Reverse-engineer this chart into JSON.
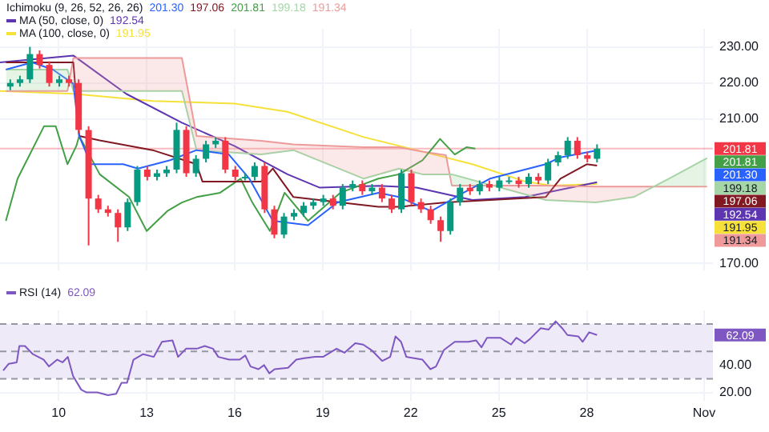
{
  "chart_data": [
    {
      "type": "candlestick",
      "legend": "top left",
      "grid": true,
      "tick_labels": "y",
      "annotations": [
        "Ichimoku (9, 26, 52, 26, 26)",
        "201.30",
        "197.06",
        "201.81",
        "199.18",
        "191.34",
        "192.54",
        "191.95"
      ],
      "x": [
        8.35,
        8.68,
        9.02,
        9.35,
        9.68,
        10.02,
        10.35,
        10.68,
        11.02,
        11.35,
        11.68,
        12.02,
        12.35,
        12.68,
        13.02,
        13.35,
        13.68,
        14.02,
        14.35,
        14.68,
        15.02,
        15.35,
        15.68,
        16.02,
        16.35,
        16.68,
        17.02,
        17.35,
        17.68,
        18.02,
        18.35,
        18.68,
        19.02,
        19.35,
        19.68,
        20.02,
        20.35,
        20.68,
        21.02,
        21.35,
        21.68,
        22.02,
        22.35,
        22.68,
        23.02,
        23.35,
        23.68,
        24.02,
        24.35,
        24.68,
        25.02,
        25.35,
        25.68,
        26.02,
        26.35,
        26.68,
        27.02,
        27.35,
        27.68,
        28.02,
        28.35
      ],
      "ohlc": [
        [
          219,
          221,
          218,
          220
        ],
        [
          220,
          222,
          219,
          221
        ],
        [
          221,
          230,
          220,
          228
        ],
        [
          228,
          229,
          224,
          225
        ],
        [
          225,
          226,
          219,
          220
        ],
        [
          220,
          222,
          219,
          221
        ],
        [
          221,
          222,
          219,
          220
        ],
        [
          220,
          221,
          206,
          207
        ],
        [
          207,
          208,
          175,
          188
        ],
        [
          188,
          189,
          184,
          185
        ],
        [
          185,
          186,
          183,
          184
        ],
        [
          184,
          185,
          176,
          180
        ],
        [
          180,
          188,
          179,
          187
        ],
        [
          187,
          197,
          186,
          196
        ],
        [
          196,
          197,
          193,
          194
        ],
        [
          194,
          196,
          193,
          195
        ],
        [
          195,
          197,
          194,
          196
        ],
        [
          196,
          209,
          195,
          207
        ],
        [
          207,
          208,
          194,
          195
        ],
        [
          195,
          200,
          194,
          199
        ],
        [
          199,
          204,
          198,
          203
        ],
        [
          203,
          205,
          202,
          204
        ],
        [
          204,
          205,
          195,
          196
        ],
        [
          196,
          197,
          193,
          194
        ],
        [
          194,
          195,
          193,
          194
        ],
        [
          194,
          198,
          193,
          197
        ],
        [
          197,
          198,
          184,
          185
        ],
        [
          185,
          186,
          177,
          178
        ],
        [
          178,
          184,
          177,
          183
        ],
        [
          183,
          185,
          182,
          184
        ],
        [
          184,
          187,
          183,
          186
        ],
        [
          186,
          188,
          185,
          187
        ],
        [
          187,
          189,
          186,
          188
        ],
        [
          188,
          189,
          185,
          186
        ],
        [
          186,
          192,
          185,
          191
        ],
        [
          191,
          193,
          190,
          192
        ],
        [
          192,
          193,
          189,
          190
        ],
        [
          190,
          192,
          189,
          191
        ],
        [
          191,
          192,
          187,
          188
        ],
        [
          188,
          189,
          184,
          185
        ],
        [
          185,
          196,
          184,
          195
        ],
        [
          195,
          196,
          186,
          187
        ],
        [
          187,
          188,
          184,
          185
        ],
        [
          185,
          186,
          181,
          182
        ],
        [
          182,
          183,
          176,
          179
        ],
        [
          179,
          188,
          178,
          187
        ],
        [
          187,
          192,
          186,
          191
        ],
        [
          191,
          192,
          189,
          190
        ],
        [
          190,
          193,
          189,
          192
        ],
        [
          192,
          193,
          190,
          191
        ],
        [
          191,
          194,
          190,
          193
        ],
        [
          193,
          194,
          192,
          193
        ],
        [
          193,
          194,
          191,
          192
        ],
        [
          192,
          195,
          191,
          194
        ],
        [
          194,
          195,
          192,
          193
        ],
        [
          193,
          199,
          192,
          198
        ],
        [
          198,
          201,
          197,
          200
        ],
        [
          200,
          205,
          199,
          204
        ],
        [
          204,
          205,
          199,
          200
        ],
        [
          200,
          201,
          198,
          199
        ],
        [
          199,
          203,
          198,
          201.81
        ]
      ],
      "xlim": [
        8,
        32.3
      ],
      "xticks": [
        10,
        13,
        16,
        19,
        22,
        25,
        28,
        {
          "value": 32,
          "label": null
        }
      ],
      "ylim": [
        168,
        235
      ],
      "yticks": [
        {
          "value": 170,
          "label": "170.00"
        },
        {
          "value": 210,
          "label": "210.00"
        },
        {
          "value": 220,
          "label": "220.00"
        },
        {
          "value": 230,
          "label": "230.00"
        }
      ],
      "ref_lines": [
        {
          "axis": "y",
          "value": 201.81,
          "label": "201.81",
          "color": "#f23645",
          "line_style": "solid"
        }
      ],
      "series": [
        {
          "type": "line",
          "color": "#2962ff",
          "x": [
            8.2,
            9.1,
            9.8,
            10.5,
            10.7,
            11.1,
            12.2,
            12.7,
            13.8,
            14.7,
            15.8,
            16.5,
            17.3,
            18.5,
            19.5,
            20.9,
            21.6,
            22.7,
            23.8,
            24.7,
            26.6,
            27.1,
            28.35
          ],
          "values": [
            223.7,
            225.7,
            223.7,
            219.8,
            205.3,
            197.5,
            197.5,
            196.3,
            198.6,
            201.4,
            200.2,
            193.5,
            181.8,
            180.6,
            186.9,
            189.6,
            188.4,
            184.5,
            189.6,
            193.5,
            197.5,
            199.4,
            201.3
          ]
        },
        {
          "type": "line",
          "color": "#801922",
          "x": [
            8.2,
            10.5,
            10.7,
            11.4,
            13.2,
            14.7,
            14.9,
            16.9,
            17.3,
            18.0,
            20.9,
            21.6,
            23.2,
            26.6,
            27.1,
            28.0,
            28.35
          ],
          "values": [
            225.7,
            225.7,
            205.3,
            204.1,
            201.4,
            197.5,
            192.7,
            192.7,
            196.3,
            188.4,
            185.7,
            185.7,
            186.9,
            188.4,
            193.5,
            197.5,
            197.1
          ]
        },
        {
          "type": "line",
          "color": "#43a047",
          "x": [
            8.2,
            8.6,
            9.5,
            9.9,
            10.3,
            10.6,
            10.7,
            11.4,
            12.4,
            13.0,
            13.7,
            14.2,
            14.7,
            15.5,
            16.2,
            16.6,
            17.2,
            17.7,
            18.5,
            19.6,
            20.9,
            21.6,
            22.4,
            23.0,
            23.5,
            23.9,
            24.2
          ],
          "values": [
            181.8,
            193.5,
            208,
            208,
            197.5,
            202.5,
            205.3,
            194.7,
            188.4,
            179,
            184.5,
            186.9,
            188.4,
            189.6,
            193.5,
            186.9,
            179,
            189.6,
            181.8,
            189.6,
            193.5,
            194.7,
            198.6,
            204.5,
            200.2,
            202.2,
            201.8
          ]
        },
        {
          "type": "line",
          "color": "#a5d6a7",
          "x": [
            8.2,
            10.3,
            10.5,
            13.7,
            14.2,
            14.7,
            16.9,
            18.0,
            20.4,
            21.6,
            22.4,
            23.2,
            23.4,
            26.6,
            28.3,
            29.6,
            30.8,
            32.1
          ],
          "values": [
            223.7,
            223.7,
            217.8,
            217.8,
            217.8,
            201.4,
            200.2,
            201.4,
            193.5,
            196.3,
            194.7,
            194.7,
            194.7,
            187.6,
            186.9,
            188.4,
            193.5,
            199.2
          ]
        },
        {
          "type": "line",
          "color": "#ef9a9a",
          "x": [
            8.2,
            10.3,
            10.5,
            13.7,
            14.2,
            14.7,
            16.9,
            18.0,
            20.4,
            21.6,
            22.4,
            23.2,
            23.4,
            26.6,
            28.3,
            29.6,
            30.8,
            32.1
          ],
          "values": [
            217.8,
            217.8,
            226.9,
            226.9,
            226.9,
            205.3,
            204,
            203,
            202.2,
            202.2,
            201,
            200,
            191.6,
            191.6,
            191.3,
            191.3,
            191.3,
            191.3
          ],
          "lower": [
            217.8,
            217.8,
            226.9,
            226.9,
            226.9,
            205.3,
            204,
            203,
            202.2,
            202.2,
            201,
            200,
            191.6,
            191.6,
            191.3,
            191.3,
            191.3,
            191.3
          ],
          "upper": [
            223.7,
            223.7,
            217.8,
            217.8,
            217.8,
            201.4,
            200.2,
            201.4,
            193.5,
            196.3,
            194.7,
            194.7,
            194.7,
            187.6,
            186.9,
            188.4,
            193.5,
            199.2
          ]
        },
        {
          "type": "line",
          "name": "MA (50, close, 0)",
          "color": "#5e35b1",
          "x": [
            8.0,
            10.5,
            12.3,
            14.2,
            16.0,
            17.8,
            18.9,
            20.9,
            22.2,
            24.1,
            25.9,
            28.35
          ],
          "values": [
            225.7,
            227.6,
            217,
            209,
            202.5,
            194.7,
            191,
            191.5,
            191,
            187.6,
            188.4,
            192.5
          ]
        },
        {
          "type": "line",
          "name": "MA (100, close, 0)",
          "color": "#f5e13a",
          "x": [
            8.0,
            10.5,
            13.2,
            16.0,
            17.8,
            20.4,
            22.2,
            24.1,
            25.9,
            26.8,
            28.35
          ],
          "values": [
            217.8,
            217,
            215,
            214.3,
            212,
            205,
            201.4,
            197.5,
            192.7,
            191.6,
            192
          ]
        }
      ]
    },
    {
      "type": "line",
      "legend": "top left",
      "grid": true,
      "annotations": [
        "62.09"
      ],
      "xlim": [
        8,
        32.3
      ],
      "xticks": [
        10,
        13,
        16,
        19,
        22,
        25,
        28,
        {
          "value": 32,
          "label": "Nov"
        }
      ],
      "ylim": [
        14,
        80
      ],
      "yticks": [
        {
          "value": 20,
          "label": "20.00"
        },
        {
          "value": 40,
          "label": "40.00"
        }
      ],
      "ref_lines": [
        {
          "axis": "y",
          "value": 70,
          "color": "#9598a1",
          "line_style": "dashed"
        },
        {
          "axis": "y",
          "value": 50,
          "color": "#9598a1",
          "line_style": "dashed"
        },
        {
          "axis": "y",
          "value": 30,
          "color": "#9598a1",
          "line_style": "dashed"
        }
      ],
      "bands": [
        {
          "axis": "y",
          "from": 30,
          "to": 70,
          "color": "#efeaf8"
        }
      ],
      "series": [
        {
          "name": "RSI (14)",
          "color": "#7e57c2",
          "x": [
            8.11,
            8.3,
            8.57,
            8.66,
            8.85,
            9.12,
            9.49,
            9.67,
            9.95,
            10.13,
            10.31,
            10.49,
            10.77,
            10.95,
            11.32,
            11.68,
            11.96,
            12.14,
            12.33,
            12.55,
            12.88,
            13.24,
            13.52,
            13.88,
            14.07,
            14.34,
            14.71,
            14.98,
            15.26,
            15.44,
            15.81,
            16.17,
            16.36,
            16.54,
            16.81,
            17.0,
            17.18,
            17.36,
            17.82,
            18.1,
            18.37,
            18.74,
            19.01,
            19.47,
            19.74,
            20.11,
            20.38,
            20.66,
            21.03,
            21.3,
            21.48,
            21.67,
            21.85,
            22.4,
            22.67,
            22.86,
            23.13,
            23.5,
            23.96,
            24.23,
            24.41,
            24.6,
            25.05,
            25.42,
            25.6,
            25.88,
            26.06,
            26.43,
            26.7,
            26.94,
            27.16,
            27.34,
            27.71,
            27.86,
            28.08,
            28.35
          ],
          "values": [
            36,
            41,
            42,
            54,
            54,
            48,
            44,
            39,
            44,
            42,
            46,
            32,
            22,
            20,
            20,
            18,
            19,
            27,
            27,
            44,
            48,
            46,
            57,
            58,
            46,
            52,
            52,
            54,
            52,
            46,
            44,
            44,
            47,
            39,
            37,
            40,
            34,
            37,
            38,
            44,
            45,
            46,
            46,
            52,
            49,
            56,
            55,
            51,
            43,
            46,
            61,
            57,
            46,
            44,
            37,
            39,
            51,
            57,
            57,
            58,
            53,
            60,
            60,
            55,
            60,
            56,
            59,
            67,
            66,
            72,
            67,
            62,
            61,
            57,
            64,
            62
          ]
        }
      ]
    }
  ]
}
